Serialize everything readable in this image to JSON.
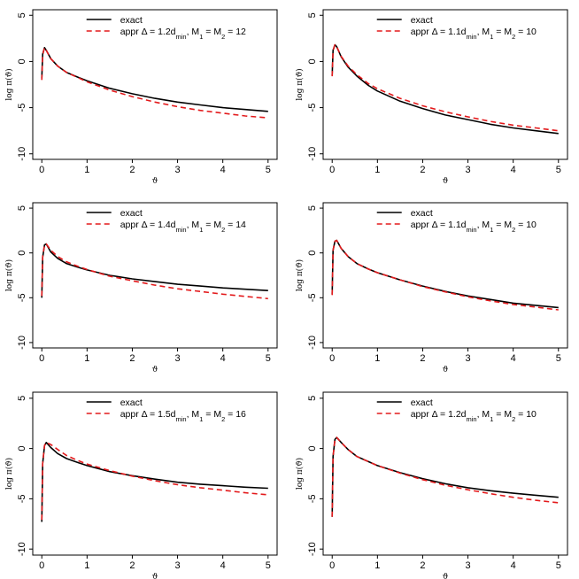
{
  "chart_data": [
    {
      "type": "line",
      "ylabel": "log π(ϑ)",
      "xlabel": "ϑ",
      "xlim": [
        0,
        5
      ],
      "ylim": [
        -10,
        5
      ],
      "xticks": [
        0,
        1,
        2,
        3,
        4,
        5
      ],
      "yticks": [
        5,
        0,
        -5,
        -10
      ],
      "legend_position": "top-right",
      "series": [
        {
          "name": "exact",
          "color": "#000000",
          "dash": "solid",
          "x": [
            0.0,
            0.02,
            0.06,
            0.1,
            0.2,
            0.35,
            0.55,
            0.8,
            1.0,
            1.5,
            2.0,
            2.5,
            3.0,
            3.5,
            4.0,
            4.5,
            5.0
          ],
          "y": [
            -1.8,
            0.8,
            1.5,
            1.2,
            0.3,
            -0.5,
            -1.2,
            -1.7,
            -2.1,
            -2.9,
            -3.5,
            -4.0,
            -4.4,
            -4.7,
            -5.0,
            -5.2,
            -5.4
          ]
        },
        {
          "name": "appr Δ = 1.2d_min, M₁ = M₂ = 12",
          "color": "#e31a1c",
          "dash": "dashed",
          "x": [
            0.0,
            0.02,
            0.06,
            0.1,
            0.2,
            0.35,
            0.55,
            0.8,
            1.0,
            1.5,
            2.0,
            2.5,
            3.0,
            3.5,
            4.0,
            4.5,
            5.0
          ],
          "y": [
            -2.0,
            0.7,
            1.5,
            1.2,
            0.3,
            -0.5,
            -1.2,
            -1.75,
            -2.2,
            -3.1,
            -3.8,
            -4.4,
            -4.9,
            -5.3,
            -5.6,
            -5.9,
            -6.1
          ]
        }
      ],
      "legend": {
        "name_exact": "exact",
        "appr_prefix": "appr Δ = ",
        "appr_value": "1.2d",
        "appr_sub": "min",
        "appr_suffix": ", M",
        "m1_sub": "1",
        "m_eq": " = M",
        "m2_sub": "2",
        "m_value": " = 12"
      }
    },
    {
      "type": "line",
      "ylabel": "log π(ϑ)",
      "xlabel": "ϑ",
      "xlim": [
        0,
        5
      ],
      "ylim": [
        -10,
        5
      ],
      "xticks": [
        0,
        1,
        2,
        3,
        4,
        5
      ],
      "yticks": [
        5,
        0,
        -5,
        -10
      ],
      "legend_position": "top-right",
      "series": [
        {
          "name": "exact",
          "color": "#000000",
          "dash": "solid",
          "x": [
            0.0,
            0.02,
            0.06,
            0.1,
            0.2,
            0.35,
            0.55,
            0.8,
            1.0,
            1.5,
            2.0,
            2.5,
            3.0,
            3.5,
            4.0,
            4.5,
            5.0
          ],
          "y": [
            -1.5,
            1.2,
            1.8,
            1.6,
            0.5,
            -0.6,
            -1.6,
            -2.6,
            -3.2,
            -4.3,
            -5.1,
            -5.8,
            -6.3,
            -6.8,
            -7.2,
            -7.5,
            -7.8
          ]
        },
        {
          "name": "appr Δ = 1.1d_min, M₁ = M₂ = 10",
          "color": "#e31a1c",
          "dash": "dashed",
          "x": [
            0.0,
            0.02,
            0.06,
            0.1,
            0.2,
            0.35,
            0.55,
            0.8,
            1.0,
            1.5,
            2.0,
            2.5,
            3.0,
            3.5,
            4.0,
            4.5,
            5.0
          ],
          "y": [
            -1.6,
            1.2,
            1.8,
            1.6,
            0.55,
            -0.5,
            -1.45,
            -2.4,
            -2.95,
            -4.0,
            -4.8,
            -5.45,
            -6.0,
            -6.5,
            -6.9,
            -7.2,
            -7.5
          ]
        }
      ],
      "legend": {
        "name_exact": "exact",
        "appr_prefix": "appr Δ = ",
        "appr_value": "1.1d",
        "appr_sub": "min",
        "appr_suffix": ", M",
        "m1_sub": "1",
        "m_eq": " = M",
        "m2_sub": "2",
        "m_value": " = 10"
      }
    },
    {
      "type": "line",
      "ylabel": "log π(ϑ)",
      "xlabel": "ϑ",
      "xlim": [
        0,
        5
      ],
      "ylim": [
        -10,
        5
      ],
      "xticks": [
        0,
        1,
        2,
        3,
        4,
        5
      ],
      "yticks": [
        5,
        0,
        -5,
        -10
      ],
      "legend_position": "top-right",
      "series": [
        {
          "name": "exact",
          "color": "#000000",
          "dash": "solid",
          "x": [
            0.0,
            0.02,
            0.06,
            0.1,
            0.2,
            0.35,
            0.55,
            0.8,
            1.0,
            1.5,
            2.0,
            2.5,
            3.0,
            3.5,
            4.0,
            4.5,
            5.0
          ],
          "y": [
            -5.0,
            -0.5,
            0.9,
            1.0,
            0.1,
            -0.6,
            -1.2,
            -1.6,
            -1.9,
            -2.5,
            -2.9,
            -3.2,
            -3.5,
            -3.7,
            -3.9,
            -4.05,
            -4.2
          ]
        },
        {
          "name": "appr Δ = 1.4d_min, M₁ = M₂ = 14",
          "color": "#e31a1c",
          "dash": "dashed",
          "x": [
            0.0,
            0.02,
            0.06,
            0.1,
            0.2,
            0.35,
            0.55,
            0.8,
            1.0,
            1.5,
            2.0,
            2.5,
            3.0,
            3.5,
            4.0,
            4.5,
            5.0
          ],
          "y": [
            -4.8,
            -0.4,
            0.9,
            1.0,
            0.3,
            -0.4,
            -1.0,
            -1.5,
            -1.85,
            -2.6,
            -3.1,
            -3.6,
            -4.0,
            -4.3,
            -4.6,
            -4.85,
            -5.1
          ]
        }
      ],
      "legend": {
        "name_exact": "exact",
        "appr_prefix": "appr Δ = ",
        "appr_value": "1.4d",
        "appr_sub": "min",
        "appr_suffix": ", M",
        "m1_sub": "1",
        "m_eq": " = M",
        "m2_sub": "2",
        "m_value": " = 14"
      }
    },
    {
      "type": "line",
      "ylabel": "log π(ϑ)",
      "xlabel": "ϑ",
      "xlim": [
        0,
        5
      ],
      "ylim": [
        -10,
        5
      ],
      "xticks": [
        0,
        1,
        2,
        3,
        4,
        5
      ],
      "yticks": [
        5,
        0,
        -5,
        -10
      ],
      "legend_position": "top-right",
      "series": [
        {
          "name": "exact",
          "color": "#000000",
          "dash": "solid",
          "x": [
            0.0,
            0.02,
            0.06,
            0.1,
            0.2,
            0.35,
            0.55,
            0.8,
            1.0,
            1.5,
            2.0,
            2.5,
            3.0,
            3.5,
            4.0,
            4.5,
            5.0
          ],
          "y": [
            -4.6,
            0.3,
            1.3,
            1.4,
            0.5,
            -0.4,
            -1.2,
            -1.8,
            -2.2,
            -3.0,
            -3.7,
            -4.3,
            -4.8,
            -5.2,
            -5.6,
            -5.85,
            -6.1
          ]
        },
        {
          "name": "appr Δ = 1.1d_min, M₁ = M₂ = 10",
          "color": "#e31a1c",
          "dash": "dashed",
          "x": [
            0.0,
            0.02,
            0.06,
            0.1,
            0.2,
            0.35,
            0.55,
            0.8,
            1.0,
            1.5,
            2.0,
            2.5,
            3.0,
            3.5,
            4.0,
            4.5,
            5.0
          ],
          "y": [
            -4.7,
            0.3,
            1.3,
            1.4,
            0.5,
            -0.4,
            -1.2,
            -1.8,
            -2.2,
            -3.0,
            -3.75,
            -4.35,
            -4.9,
            -5.35,
            -5.75,
            -6.05,
            -6.35
          ]
        }
      ],
      "legend": {
        "name_exact": "exact",
        "appr_prefix": "appr Δ = ",
        "appr_value": "1.1d",
        "appr_sub": "min",
        "appr_suffix": ", M",
        "m1_sub": "1",
        "m_eq": " = M",
        "m2_sub": "2",
        "m_value": " = 10"
      }
    },
    {
      "type": "line",
      "ylabel": "log π(ϑ)",
      "xlabel": "ϑ",
      "xlim": [
        0,
        5
      ],
      "ylim": [
        -10,
        5
      ],
      "xticks": [
        0,
        1,
        2,
        3,
        4,
        5
      ],
      "yticks": [
        5,
        0,
        -5,
        -10
      ],
      "legend_position": "top-right",
      "series": [
        {
          "name": "exact",
          "color": "#000000",
          "dash": "solid",
          "x": [
            0.0,
            0.02,
            0.06,
            0.1,
            0.2,
            0.35,
            0.55,
            0.8,
            1.0,
            1.5,
            2.0,
            2.5,
            3.0,
            3.5,
            4.0,
            4.5,
            5.0
          ],
          "y": [
            -7.3,
            -1.5,
            0.3,
            0.6,
            0.1,
            -0.5,
            -1.0,
            -1.4,
            -1.7,
            -2.3,
            -2.7,
            -3.05,
            -3.35,
            -3.55,
            -3.7,
            -3.85,
            -3.95
          ]
        },
        {
          "name": "appr Δ = 1.5d_min, M₁ = M₂ = 16",
          "color": "#e31a1c",
          "dash": "dashed",
          "x": [
            0.0,
            0.02,
            0.06,
            0.1,
            0.2,
            0.35,
            0.55,
            0.8,
            1.0,
            1.5,
            2.0,
            2.5,
            3.0,
            3.5,
            4.0,
            4.5,
            5.0
          ],
          "y": [
            -7.1,
            -1.5,
            0.3,
            0.6,
            0.4,
            -0.1,
            -0.7,
            -1.2,
            -1.55,
            -2.2,
            -2.75,
            -3.2,
            -3.6,
            -3.9,
            -4.15,
            -4.4,
            -4.6
          ]
        }
      ],
      "legend": {
        "name_exact": "exact",
        "appr_prefix": "appr Δ = ",
        "appr_value": "1.5d",
        "appr_sub": "min",
        "appr_suffix": ", M",
        "m1_sub": "1",
        "m_eq": " = M",
        "m2_sub": "2",
        "m_value": " = 16"
      }
    },
    {
      "type": "line",
      "ylabel": "log π(ϑ)",
      "xlabel": "ϑ",
      "xlim": [
        0,
        5
      ],
      "ylim": [
        -10,
        5
      ],
      "xticks": [
        0,
        1,
        2,
        3,
        4,
        5
      ],
      "yticks": [
        5,
        0,
        -5,
        -10
      ],
      "legend_position": "top-right",
      "series": [
        {
          "name": "exact",
          "color": "#000000",
          "dash": "solid",
          "x": [
            0.0,
            0.02,
            0.06,
            0.1,
            0.2,
            0.35,
            0.55,
            0.8,
            1.0,
            1.5,
            2.0,
            2.5,
            3.0,
            3.5,
            4.0,
            4.5,
            5.0
          ],
          "y": [
            -6.8,
            -0.8,
            0.9,
            1.1,
            0.6,
            -0.1,
            -0.8,
            -1.3,
            -1.7,
            -2.4,
            -3.0,
            -3.5,
            -3.9,
            -4.2,
            -4.45,
            -4.65,
            -4.85
          ]
        },
        {
          "name": "appr Δ = 1.2d_min, M₁ = M₂ = 10",
          "color": "#e31a1c",
          "dash": "dashed",
          "x": [
            0.0,
            0.02,
            0.06,
            0.1,
            0.2,
            0.35,
            0.55,
            0.8,
            1.0,
            1.5,
            2.0,
            2.5,
            3.0,
            3.5,
            4.0,
            4.5,
            5.0
          ],
          "y": [
            -6.8,
            -0.8,
            0.9,
            1.1,
            0.6,
            -0.1,
            -0.8,
            -1.3,
            -1.7,
            -2.45,
            -3.1,
            -3.65,
            -4.1,
            -4.5,
            -4.85,
            -5.15,
            -5.4
          ]
        }
      ],
      "legend": {
        "name_exact": "exact",
        "appr_prefix": "appr Δ = ",
        "appr_value": "1.2d",
        "appr_sub": "min",
        "appr_suffix": ", M",
        "m1_sub": "1",
        "m_eq": " = M",
        "m2_sub": "2",
        "m_value": " = 10"
      }
    }
  ]
}
